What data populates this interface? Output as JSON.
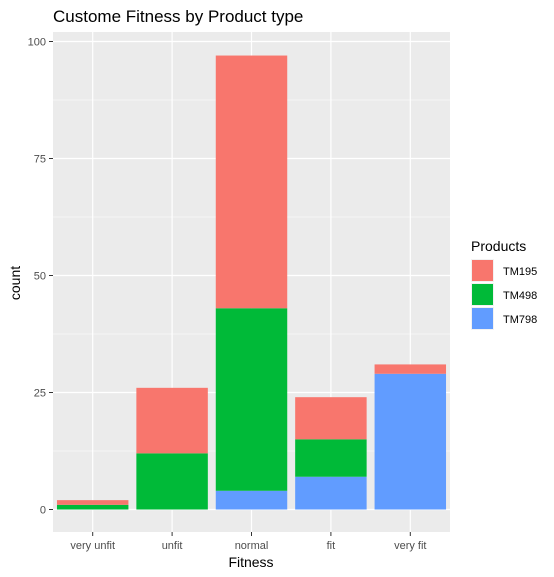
{
  "chart_data": {
    "type": "bar",
    "stacked": true,
    "title": "Custome Fitness by Product type",
    "xlabel": "Fitness",
    "ylabel": "count",
    "categories": [
      "very unfit",
      "unfit",
      "normal",
      "fit",
      "very fit"
    ],
    "yticks": [
      "0",
      "25",
      "50",
      "75",
      "100"
    ],
    "ylim": [
      0,
      100
    ],
    "grid": true,
    "legend_title": "Products",
    "legend_position": "right",
    "series": [
      {
        "name": "TM195",
        "color": "#F8766D",
        "values": [
          1,
          14,
          54,
          9,
          2
        ]
      },
      {
        "name": "TM498",
        "color": "#00BA38",
        "values": [
          1,
          12,
          39,
          8,
          0
        ]
      },
      {
        "name": "TM798",
        "color": "#619CFF",
        "values": [
          0,
          0,
          4,
          7,
          29
        ]
      }
    ]
  }
}
